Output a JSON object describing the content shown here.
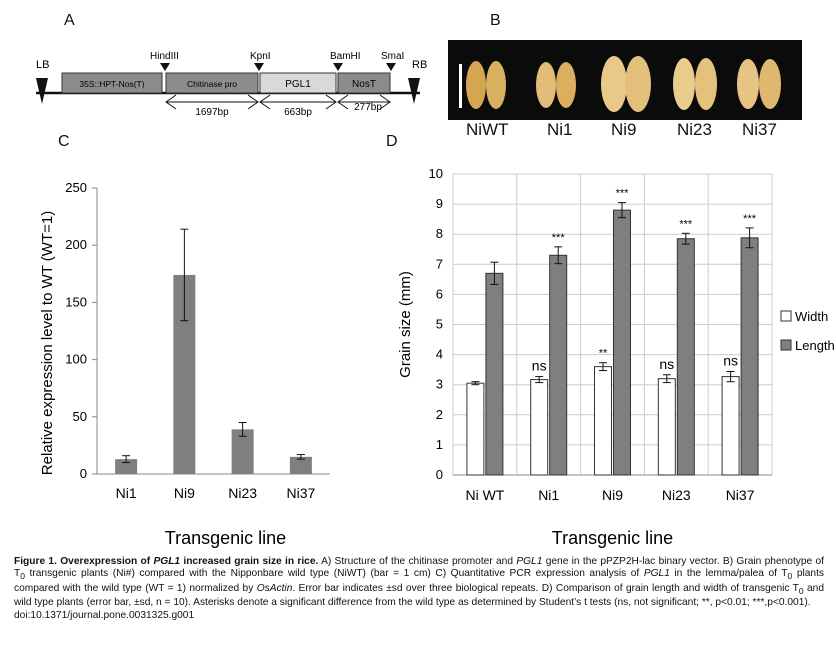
{
  "panels": {
    "a": "A",
    "b": "B",
    "c": "C",
    "d": "D"
  },
  "construct": {
    "lb": "LB",
    "rb": "RB",
    "sites": [
      "HindIII",
      "KpnI",
      "BamHI",
      "SmaI"
    ],
    "boxes": [
      "35S::HPT-Nos(T)",
      "Chitinase pro",
      "PGL1",
      "NosT"
    ],
    "sizes": [
      "1697bp",
      "663bp",
      "277bp"
    ]
  },
  "grains": [
    "NiWT",
    "Ni1",
    "Ni9",
    "Ni23",
    "Ni37"
  ],
  "chart_data": [
    {
      "type": "bar",
      "panel": "C",
      "categories": [
        "Ni1",
        "Ni9",
        "Ni23",
        "Ni37"
      ],
      "values": [
        13,
        174,
        39,
        15
      ],
      "errors": [
        3,
        40,
        6,
        2
      ],
      "ylim": [
        0,
        250
      ],
      "yticks": [
        0,
        50,
        100,
        150,
        200,
        250
      ],
      "ylabel": "Relative expression level to WT (WT=1)",
      "xlabel": "Transgenic line",
      "color": "#7f7f7f"
    },
    {
      "type": "bar",
      "panel": "D",
      "categories": [
        "Ni WT",
        "Ni1",
        "Ni9",
        "Ni23",
        "Ni37"
      ],
      "series": [
        {
          "name": "Width",
          "values": [
            3.05,
            3.17,
            3.6,
            3.2,
            3.27
          ],
          "errors": [
            0.05,
            0.1,
            0.13,
            0.13,
            0.17
          ],
          "annotations": [
            "",
            "ns",
            "**",
            "ns",
            "ns"
          ],
          "color": "#ffffff"
        },
        {
          "name": "Length",
          "values": [
            6.7,
            7.3,
            8.8,
            7.85,
            7.88
          ],
          "errors": [
            0.37,
            0.28,
            0.25,
            0.18,
            0.33
          ],
          "annotations": [
            "",
            "***",
            "***",
            "***",
            "***"
          ],
          "color": "#7f7f7f"
        }
      ],
      "ylim": [
        0,
        10
      ],
      "yticks": [
        0,
        1,
        2,
        3,
        4,
        5,
        6,
        7,
        8,
        9,
        10
      ],
      "ylabel": "Grain size (mm)",
      "xlabel": "Transgenic line",
      "grid": true,
      "legend": "right"
    }
  ],
  "caption": {
    "fig": "Figure 1. Overexpression of ",
    "gene": "PGL1",
    "title_rest": " increased grain size in rice.",
    "s1": " A) Structure of the chitinase promoter and ",
    "gene2": "PGL1",
    "s2": " gene in the pPZP2H-lac binary vector. B) Grain phenotype of T",
    "sub0a": "0",
    "s3": " transgenic plants (Ni#) compared with the Nipponbare wild type (NiWT) (bar = 1 cm) C) Quantitative PCR expression analysis of ",
    "gene3": "PGL1",
    "s4": " in the lemma/palea of T",
    "sub0b": "0",
    "s5": " plants compared with the wild type (WT = 1) normalized by ",
    "actin": "OsActin",
    "s6": ". Error bar indicates ±sd over three biological repeats. D) Comparison of grain length and width of transgenic T",
    "sub0c": "0",
    "s7": " and wild type plants (error bar, ±sd, n = 10). Asterisks denote a significant difference from the wild type as determined by Student’s t tests (ns, not significant; **, p<0.01; ***,p<0.001).",
    "doi": "doi:10.1371/journal.pone.0031325.g001"
  }
}
